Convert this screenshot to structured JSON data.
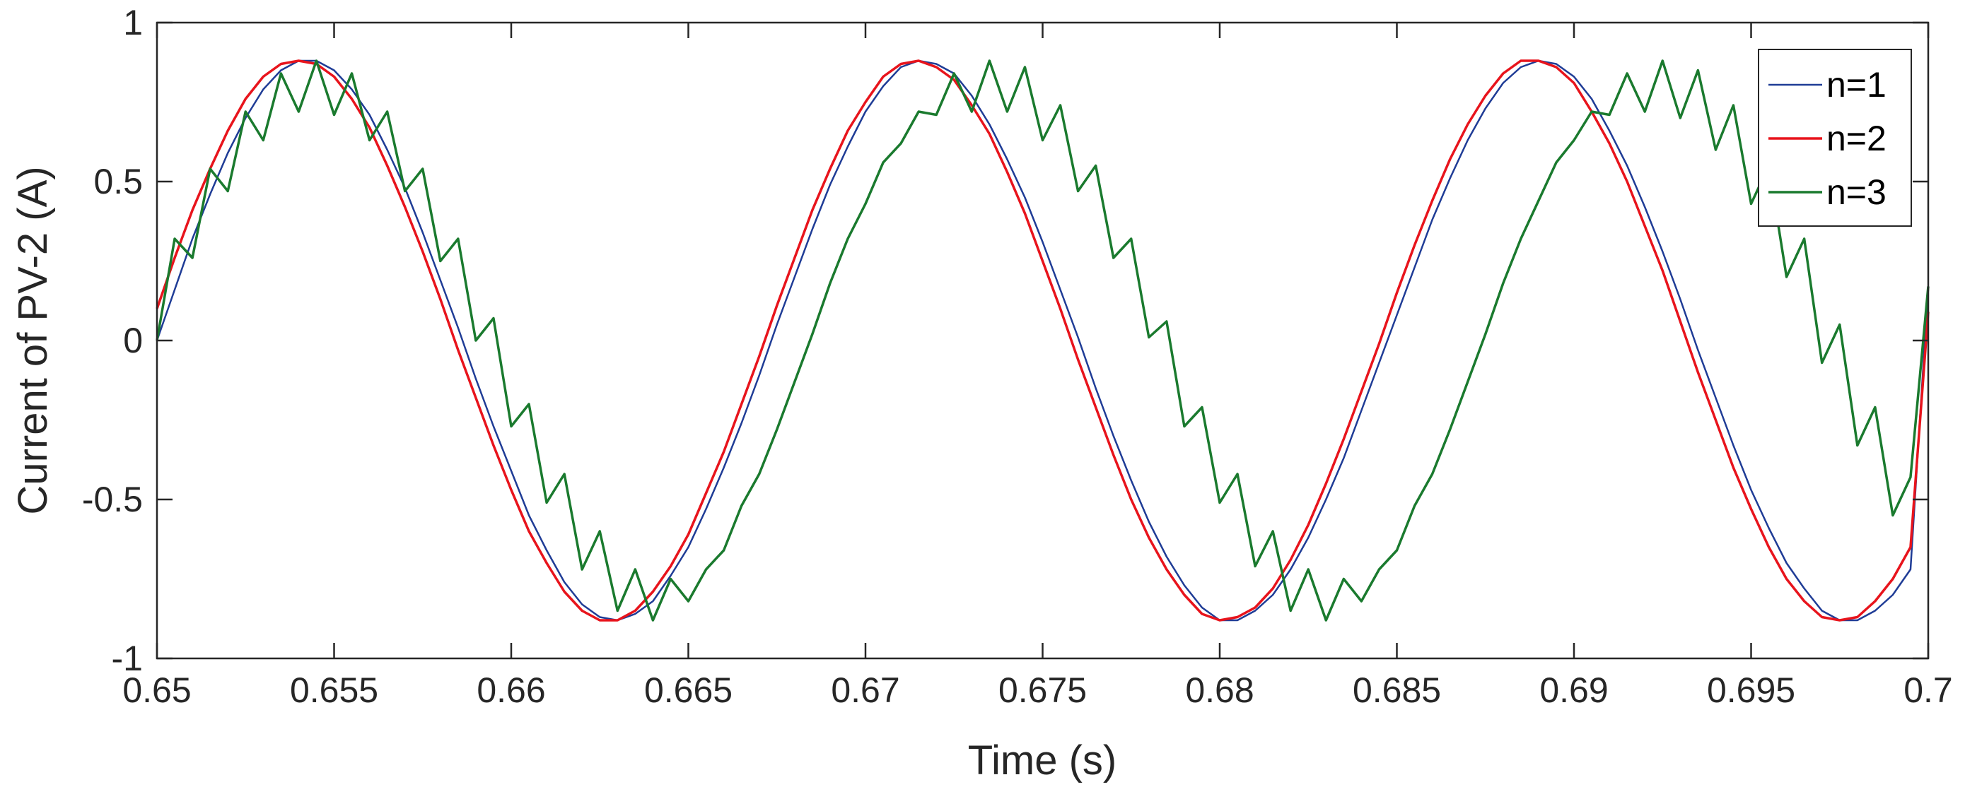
{
  "chart_data": {
    "type": "line",
    "title": "",
    "xlabel": "Time (s)",
    "ylabel": "Current of PV-2 (A)",
    "xlim": [
      0.65,
      0.7
    ],
    "ylim": [
      -1,
      1
    ],
    "xticks": [
      "0.65",
      "0.655",
      "0.66",
      "0.665",
      "0.67",
      "0.675",
      "0.68",
      "0.685",
      "0.69",
      "0.695",
      "0.7"
    ],
    "yticks": [
      "-1",
      "-0.5",
      "0",
      "0.5",
      "1"
    ],
    "grid": false,
    "legend_position": "top-right",
    "series": [
      {
        "name": "n=1",
        "color": "#1f3c96",
        "description_of_shape": "sinusoid 60 Hz, overlapped by n=3",
        "x": [
          0.65,
          0.6505,
          0.651,
          0.6515,
          0.652,
          0.6525,
          0.653,
          0.6535,
          0.654,
          0.6545,
          0.655,
          0.6555,
          0.656,
          0.6565,
          0.657,
          0.6575,
          0.658,
          0.6585,
          0.659,
          0.6595,
          0.66,
          0.6605,
          0.661,
          0.6615,
          0.662,
          0.6625,
          0.663,
          0.6635,
          0.664,
          0.6645,
          0.665,
          0.6655,
          0.666,
          0.6665,
          0.667,
          0.6675,
          0.668,
          0.6685,
          0.669,
          0.6695,
          0.67,
          0.6705,
          0.671,
          0.6715,
          0.672,
          0.6725,
          0.673,
          0.6735,
          0.674,
          0.6745,
          0.675,
          0.6755,
          0.676,
          0.6765,
          0.677,
          0.6775,
          0.678,
          0.6785,
          0.679,
          0.6795,
          0.68,
          0.6805,
          0.681,
          0.6815,
          0.682,
          0.6825,
          0.683,
          0.6835,
          0.684,
          0.6845,
          0.685,
          0.6855,
          0.686,
          0.6865,
          0.687,
          0.6875,
          0.688,
          0.6885,
          0.689,
          0.6895,
          0.69,
          0.6905,
          0.691,
          0.6915,
          0.692,
          0.6925,
          0.693,
          0.6935,
          0.694,
          0.6945,
          0.695,
          0.6955,
          0.696,
          0.6965,
          0.697,
          0.6975,
          0.698,
          0.6985,
          0.699,
          0.6995,
          0.7
        ],
        "y": [
          0.0,
          0.16,
          0.32,
          0.46,
          0.59,
          0.7,
          0.79,
          0.85,
          0.88,
          0.88,
          0.85,
          0.79,
          0.71,
          0.6,
          0.48,
          0.34,
          0.19,
          0.04,
          -0.12,
          -0.27,
          -0.41,
          -0.55,
          -0.66,
          -0.76,
          -0.83,
          -0.87,
          -0.88,
          -0.86,
          -0.82,
          -0.74,
          -0.65,
          -0.53,
          -0.4,
          -0.26,
          -0.11,
          0.05,
          0.2,
          0.35,
          0.49,
          0.61,
          0.72,
          0.8,
          0.86,
          0.88,
          0.87,
          0.84,
          0.77,
          0.68,
          0.57,
          0.45,
          0.31,
          0.16,
          0.01,
          -0.15,
          -0.3,
          -0.44,
          -0.57,
          -0.68,
          -0.77,
          -0.84,
          -0.88,
          -0.88,
          -0.85,
          -0.8,
          -0.72,
          -0.62,
          -0.5,
          -0.37,
          -0.22,
          -0.07,
          0.08,
          0.23,
          0.38,
          0.51,
          0.63,
          0.73,
          0.81,
          0.86,
          0.88,
          0.87,
          0.83,
          0.76,
          0.66,
          0.55,
          0.42,
          0.28,
          0.13,
          -0.03,
          -0.18,
          -0.33,
          -0.47,
          -0.59,
          -0.7,
          -0.78,
          -0.85,
          -0.88,
          -0.88,
          -0.85,
          -0.8,
          -0.72,
          0.17
        ]
      },
      {
        "name": "n=2",
        "color": "#e8141c",
        "description_of_shape": "smooth sinusoid, amplitude 0.88 A",
        "x": [
          0.65,
          0.6505,
          0.651,
          0.6515,
          0.652,
          0.6525,
          0.653,
          0.6535,
          0.654,
          0.6545,
          0.655,
          0.6555,
          0.656,
          0.6565,
          0.657,
          0.6575,
          0.658,
          0.6585,
          0.659,
          0.6595,
          0.66,
          0.6605,
          0.661,
          0.6615,
          0.662,
          0.6625,
          0.663,
          0.6635,
          0.664,
          0.6645,
          0.665,
          0.6655,
          0.666,
          0.6665,
          0.667,
          0.6675,
          0.668,
          0.6685,
          0.669,
          0.6695,
          0.67,
          0.6705,
          0.671,
          0.6715,
          0.672,
          0.6725,
          0.673,
          0.6735,
          0.674,
          0.6745,
          0.675,
          0.6755,
          0.676,
          0.6765,
          0.677,
          0.6775,
          0.678,
          0.6785,
          0.679,
          0.6795,
          0.68,
          0.6805,
          0.681,
          0.6815,
          0.682,
          0.6825,
          0.683,
          0.6835,
          0.684,
          0.6845,
          0.685,
          0.6855,
          0.686,
          0.6865,
          0.687,
          0.6875,
          0.688,
          0.6885,
          0.689,
          0.6895,
          0.69,
          0.6905,
          0.691,
          0.6915,
          0.692,
          0.6925,
          0.693,
          0.6935,
          0.694,
          0.6945,
          0.695,
          0.6955,
          0.696,
          0.6965,
          0.697,
          0.6975,
          0.698,
          0.6985,
          0.699,
          0.6995,
          0.7
        ],
        "y": [
          0.1,
          0.26,
          0.41,
          0.54,
          0.66,
          0.76,
          0.83,
          0.87,
          0.88,
          0.87,
          0.83,
          0.76,
          0.67,
          0.55,
          0.42,
          0.28,
          0.13,
          -0.03,
          -0.18,
          -0.33,
          -0.47,
          -0.6,
          -0.7,
          -0.79,
          -0.85,
          -0.88,
          -0.88,
          -0.85,
          -0.79,
          -0.71,
          -0.61,
          -0.48,
          -0.35,
          -0.2,
          -0.05,
          0.11,
          0.26,
          0.41,
          0.54,
          0.66,
          0.75,
          0.83,
          0.87,
          0.88,
          0.86,
          0.82,
          0.74,
          0.65,
          0.53,
          0.4,
          0.25,
          0.1,
          -0.06,
          -0.21,
          -0.36,
          -0.5,
          -0.62,
          -0.72,
          -0.8,
          -0.86,
          -0.88,
          -0.87,
          -0.84,
          -0.78,
          -0.69,
          -0.58,
          -0.45,
          -0.31,
          -0.16,
          -0.01,
          0.15,
          0.3,
          0.44,
          0.57,
          0.68,
          0.77,
          0.84,
          0.88,
          0.88,
          0.86,
          0.81,
          0.72,
          0.62,
          0.5,
          0.36,
          0.22,
          0.06,
          -0.1,
          -0.25,
          -0.4,
          -0.53,
          -0.65,
          -0.75,
          -0.82,
          -0.87,
          -0.88,
          -0.87,
          -0.82,
          -0.75,
          -0.65,
          0.09
        ]
      },
      {
        "name": "n=3",
        "color": "#1a7a2e",
        "description_of_shape": "sinusoid with superimposed high-frequency ripple (~0.1 A)",
        "x": [
          0.65,
          0.6505,
          0.651,
          0.6515,
          0.652,
          0.6525,
          0.653,
          0.6535,
          0.654,
          0.6545,
          0.655,
          0.6555,
          0.656,
          0.6565,
          0.657,
          0.6575,
          0.658,
          0.6585,
          0.659,
          0.6595,
          0.66,
          0.6605,
          0.661,
          0.6615,
          0.662,
          0.6625,
          0.663,
          0.6635,
          0.664,
          0.6645,
          0.665,
          0.6655,
          0.666,
          0.6665,
          0.667,
          0.6675,
          0.668,
          0.6685,
          0.669,
          0.6695,
          0.67,
          0.6705,
          0.671,
          0.6715,
          0.672,
          0.6725,
          0.673,
          0.6735,
          0.674,
          0.6745,
          0.675,
          0.6755,
          0.676,
          0.6765,
          0.677,
          0.6775,
          0.678,
          0.6785,
          0.679,
          0.6795,
          0.68,
          0.6805,
          0.681,
          0.6815,
          0.682,
          0.6825,
          0.683,
          0.6835,
          0.684,
          0.6845,
          0.685,
          0.6855,
          0.686,
          0.6865,
          0.687,
          0.6875,
          0.688,
          0.6885,
          0.689,
          0.6895,
          0.69,
          0.6905,
          0.691,
          0.6915,
          0.692,
          0.6925,
          0.693,
          0.6935,
          0.694,
          0.6945,
          0.695,
          0.6955,
          0.696,
          0.6965,
          0.697,
          0.6975,
          0.698,
          0.6985,
          0.699,
          0.6995,
          0.7
        ],
        "y": [
          0.0,
          0.32,
          0.26,
          0.54,
          0.47,
          0.72,
          0.63,
          0.84,
          0.72,
          0.88,
          0.71,
          0.84,
          0.63,
          0.72,
          0.47,
          0.54,
          0.25,
          0.32,
          0.0,
          0.07,
          -0.27,
          -0.2,
          -0.51,
          -0.42,
          -0.72,
          -0.6,
          -0.85,
          -0.72,
          -0.88,
          -0.75,
          -0.82,
          -0.72,
          -0.66,
          -0.52,
          -0.42,
          -0.28,
          -0.13,
          0.02,
          0.18,
          0.32,
          0.43,
          0.56,
          0.62,
          0.72,
          0.71,
          0.84,
          0.72,
          0.88,
          0.72,
          0.86,
          0.63,
          0.74,
          0.47,
          0.55,
          0.26,
          0.32,
          0.01,
          0.06,
          -0.27,
          -0.21,
          -0.51,
          -0.42,
          -0.71,
          -0.6,
          -0.85,
          -0.72,
          -0.88,
          -0.75,
          -0.82,
          -0.72,
          -0.66,
          -0.52,
          -0.42,
          -0.28,
          -0.13,
          0.02,
          0.18,
          0.32,
          0.44,
          0.56,
          0.63,
          0.72,
          0.71,
          0.84,
          0.72,
          0.88,
          0.7,
          0.85,
          0.6,
          0.74,
          0.43,
          0.55,
          0.2,
          0.32,
          -0.07,
          0.05,
          -0.33,
          -0.21,
          -0.55,
          -0.43,
          0.17
        ]
      }
    ]
  }
}
